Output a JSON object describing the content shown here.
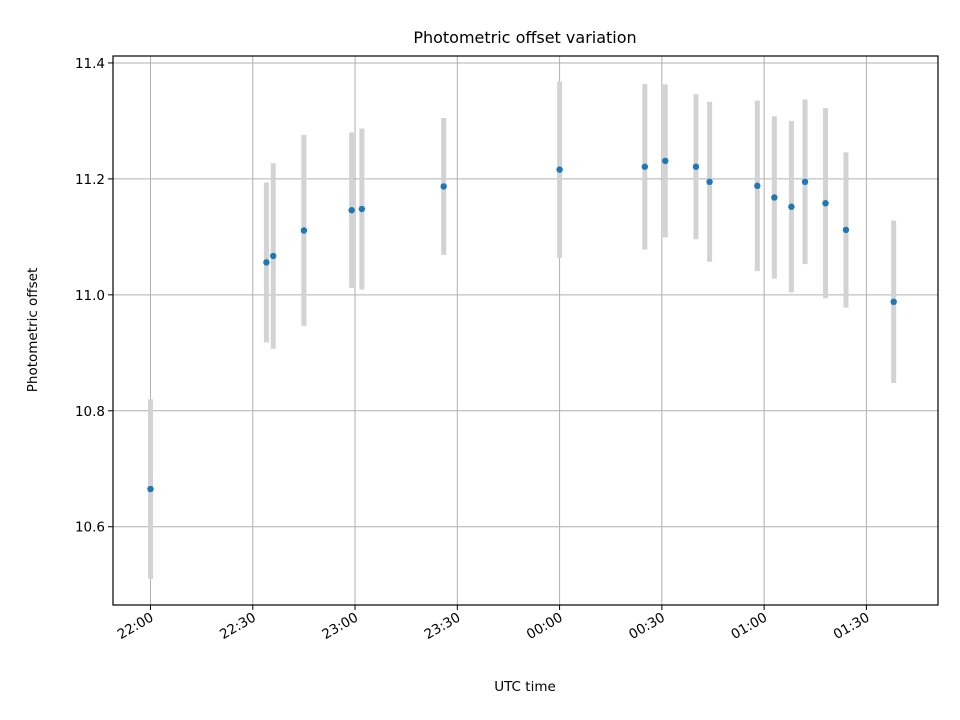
{
  "chart_data": {
    "type": "scatter",
    "title": "Photometric offset variation",
    "xlabel": "UTC time",
    "ylabel": "Photometric offset",
    "x_is_time": true,
    "xlim": [
      "21:49",
      "01:51"
    ],
    "ylim": [
      10.465,
      11.412
    ],
    "x_ticks": [
      "22:00",
      "22:30",
      "23:00",
      "23:30",
      "00:00",
      "00:30",
      "01:00",
      "01:30"
    ],
    "y_ticks": [
      "10.6",
      "10.8",
      "11.0",
      "11.2",
      "11.4"
    ],
    "grid": true,
    "marker_color": "#1f77b4",
    "errorbar_color": "#d3d3d3",
    "series": [
      {
        "points": [
          {
            "t": "22:00",
            "y": 10.665,
            "err": 0.155
          },
          {
            "t": "22:34",
            "y": 11.056,
            "err": 0.138
          },
          {
            "t": "22:36",
            "y": 11.067,
            "err": 0.16
          },
          {
            "t": "22:45",
            "y": 11.111,
            "err": 0.165
          },
          {
            "t": "22:59",
            "y": 11.146,
            "err": 0.134
          },
          {
            "t": "23:02",
            "y": 11.148,
            "err": 0.139
          },
          {
            "t": "23:26",
            "y": 11.187,
            "err": 0.118
          },
          {
            "t": "00:00",
            "y": 11.216,
            "err": 0.152
          },
          {
            "t": "00:25",
            "y": 11.221,
            "err": 0.143
          },
          {
            "t": "00:31",
            "y": 11.231,
            "err": 0.132
          },
          {
            "t": "00:40",
            "y": 11.221,
            "err": 0.125
          },
          {
            "t": "00:44",
            "y": 11.195,
            "err": 0.138
          },
          {
            "t": "00:58",
            "y": 11.188,
            "err": 0.147
          },
          {
            "t": "01:03",
            "y": 11.168,
            "err": 0.14
          },
          {
            "t": "01:08",
            "y": 11.152,
            "err": 0.148
          },
          {
            "t": "01:12",
            "y": 11.195,
            "err": 0.142
          },
          {
            "t": "01:18",
            "y": 11.158,
            "err": 0.164
          },
          {
            "t": "01:24",
            "y": 11.112,
            "err": 0.134
          },
          {
            "t": "01:38",
            "y": 10.988,
            "err": 0.14
          }
        ]
      }
    ]
  }
}
